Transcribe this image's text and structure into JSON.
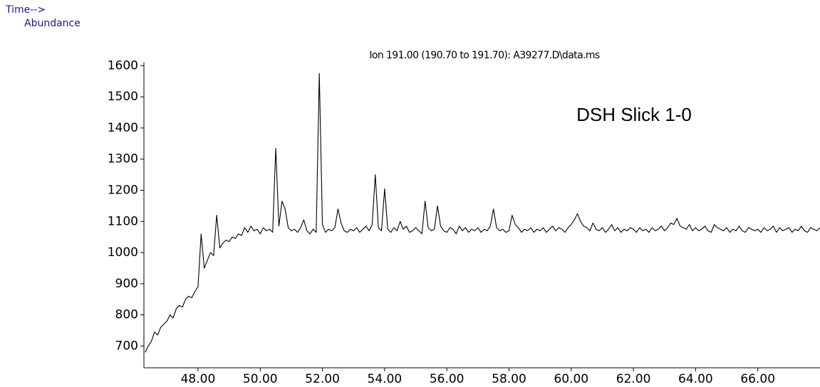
{
  "chart_data": {
    "type": "line",
    "header_left": "Time-->",
    "y_label": "Abundance",
    "title": "Ion 191.00 (190.70 to 191.70): A39277.D\\data.ms",
    "annotation": "DSH Slick 1-0",
    "x": [
      46.3,
      46.4,
      46.5,
      46.6,
      46.7,
      46.8,
      46.9,
      47.0,
      47.1,
      47.2,
      47.3,
      47.4,
      47.5,
      47.6,
      47.7,
      47.8,
      47.9,
      48.0,
      48.1,
      48.2,
      48.3,
      48.4,
      48.5,
      48.6,
      48.7,
      48.8,
      48.9,
      49.0,
      49.1,
      49.2,
      49.3,
      49.4,
      49.5,
      49.6,
      49.7,
      49.8,
      49.9,
      50.0,
      50.1,
      50.2,
      50.3,
      50.4,
      50.5,
      50.6,
      50.7,
      50.8,
      50.9,
      51.0,
      51.1,
      51.2,
      51.3,
      51.4,
      51.5,
      51.6,
      51.7,
      51.8,
      51.9,
      52.0,
      52.1,
      52.2,
      52.3,
      52.4,
      52.5,
      52.6,
      52.7,
      52.8,
      52.9,
      53.0,
      53.1,
      53.2,
      53.3,
      53.4,
      53.5,
      53.6,
      53.7,
      53.8,
      53.9,
      54.0,
      54.1,
      54.2,
      54.3,
      54.4,
      54.5,
      54.6,
      54.7,
      54.8,
      54.9,
      55.0,
      55.1,
      55.2,
      55.3,
      55.4,
      55.5,
      55.6,
      55.7,
      55.8,
      55.9,
      56.0,
      56.1,
      56.2,
      56.3,
      56.4,
      56.5,
      56.6,
      56.7,
      56.8,
      56.9,
      57.0,
      57.1,
      57.2,
      57.3,
      57.4,
      57.5,
      57.6,
      57.7,
      57.8,
      57.9,
      58.0,
      58.1,
      58.2,
      58.3,
      58.4,
      58.5,
      58.6,
      58.7,
      58.8,
      58.9,
      59.0,
      59.1,
      59.2,
      59.3,
      59.4,
      59.5,
      59.6,
      59.7,
      59.8,
      59.9,
      60.0,
      60.1,
      60.2,
      60.3,
      60.4,
      60.5,
      60.6,
      60.7,
      60.8,
      60.9,
      61.0,
      61.1,
      61.2,
      61.3,
      61.4,
      61.5,
      61.6,
      61.7,
      61.8,
      61.9,
      62.0,
      62.1,
      62.2,
      62.3,
      62.4,
      62.5,
      62.6,
      62.7,
      62.8,
      62.9,
      63.0,
      63.1,
      63.2,
      63.3,
      63.4,
      63.5,
      63.6,
      63.7,
      63.8,
      63.9,
      64.0,
      64.1,
      64.2,
      64.3,
      64.4,
      64.5,
      64.6,
      64.7,
      64.8,
      64.9,
      65.0,
      65.1,
      65.2,
      65.3,
      65.4,
      65.5,
      65.6,
      65.7,
      65.8,
      65.9,
      66.0,
      66.1,
      66.2,
      66.3,
      66.4,
      66.5,
      66.6,
      66.7,
      66.8,
      66.9,
      67.0,
      67.1,
      67.2,
      67.3,
      67.4,
      67.5,
      67.6,
      67.7,
      67.8,
      67.9,
      68.0
    ],
    "series": [
      {
        "color": "#000000",
        "values": [
          680,
          700,
          715,
          745,
          735,
          760,
          770,
          780,
          800,
          790,
          820,
          830,
          825,
          850,
          860,
          855,
          875,
          890,
          1060,
          950,
          975,
          1000,
          990,
          1120,
          1015,
          1030,
          1040,
          1035,
          1050,
          1045,
          1060,
          1055,
          1080,
          1065,
          1085,
          1070,
          1075,
          1060,
          1080,
          1070,
          1075,
          1065,
          1335,
          1085,
          1165,
          1140,
          1080,
          1070,
          1075,
          1065,
          1080,
          1105,
          1070,
          1060,
          1075,
          1065,
          1575,
          1090,
          1065,
          1075,
          1070,
          1080,
          1140,
          1095,
          1070,
          1065,
          1075,
          1070,
          1080,
          1065,
          1075,
          1085,
          1070,
          1090,
          1250,
          1080,
          1070,
          1205,
          1075,
          1065,
          1080,
          1070,
          1100,
          1075,
          1085,
          1065,
          1070,
          1080,
          1070,
          1060,
          1165,
          1080,
          1070,
          1075,
          1150,
          1085,
          1070,
          1065,
          1080,
          1075,
          1060,
          1085,
          1070,
          1080,
          1065,
          1075,
          1070,
          1080,
          1065,
          1075,
          1070,
          1085,
          1140,
          1080,
          1070,
          1075,
          1065,
          1070,
          1120,
          1090,
          1080,
          1065,
          1075,
          1070,
          1080,
          1065,
          1075,
          1070,
          1080,
          1065,
          1075,
          1085,
          1070,
          1080,
          1075,
          1065,
          1080,
          1090,
          1105,
          1125,
          1100,
          1085,
          1080,
          1070,
          1095,
          1075,
          1070,
          1080,
          1065,
          1075,
          1090,
          1070,
          1080,
          1065,
          1075,
          1070,
          1080,
          1075,
          1065,
          1080,
          1070,
          1075,
          1065,
          1080,
          1070,
          1075,
          1085,
          1070,
          1080,
          1095,
          1090,
          1110,
          1085,
          1080,
          1075,
          1090,
          1070,
          1080,
          1070,
          1075,
          1085,
          1070,
          1065,
          1090,
          1080,
          1075,
          1070,
          1080,
          1065,
          1075,
          1070,
          1085,
          1070,
          1065,
          1080,
          1075,
          1070,
          1075,
          1065,
          1080,
          1070,
          1075,
          1085,
          1065,
          1080,
          1070,
          1075,
          1080,
          1065,
          1075,
          1070,
          1085,
          1070,
          1065,
          1080,
          1075,
          1070,
          1080
        ]
      }
    ],
    "xlim": [
      46.26,
      68.0
    ],
    "ylim": [
      630,
      1610
    ],
    "xticks": [
      {
        "value": 48,
        "label": "48.00"
      },
      {
        "value": 50,
        "label": "50.00"
      },
      {
        "value": 52,
        "label": "52.00"
      },
      {
        "value": 54,
        "label": "54.00"
      },
      {
        "value": 56,
        "label": "56.00"
      },
      {
        "value": 58,
        "label": "58.00"
      },
      {
        "value": 60,
        "label": "60.00"
      },
      {
        "value": 62,
        "label": "62.00"
      },
      {
        "value": 64,
        "label": "64.00"
      },
      {
        "value": 66,
        "label": "66.00"
      }
    ],
    "yticks": [
      700,
      800,
      900,
      1000,
      1100,
      1200,
      1300,
      1400,
      1500,
      1600
    ]
  }
}
